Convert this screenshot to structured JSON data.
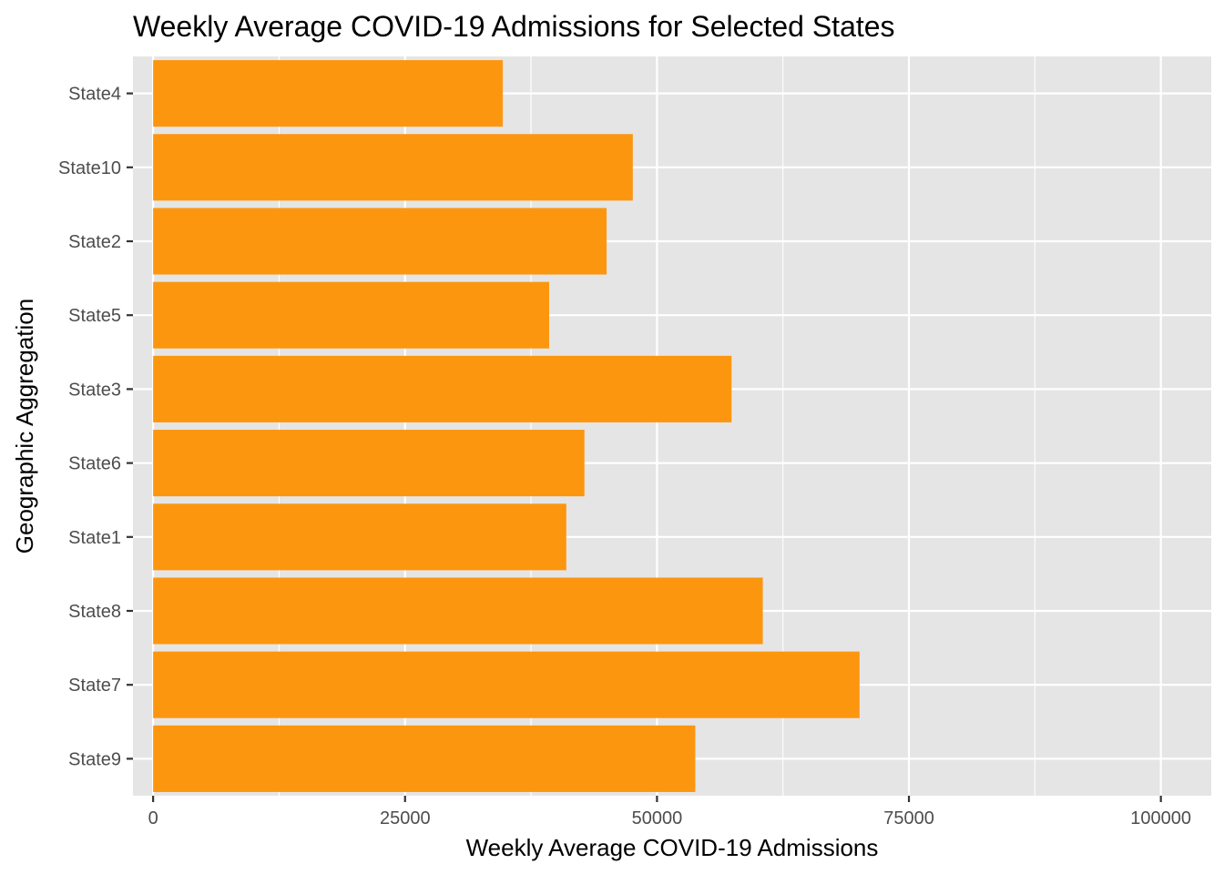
{
  "chart_data": {
    "type": "bar",
    "orientation": "horizontal",
    "title": "Weekly Average COVID-19 Admissions for Selected States",
    "xlabel": "Weekly Average COVID-19 Admissions",
    "ylabel": "Geographic Aggregation",
    "categories": [
      "State4",
      "State10",
      "State2",
      "State5",
      "State3",
      "State6",
      "State1",
      "State8",
      "State7",
      "State9"
    ],
    "values": [
      34700,
      47600,
      45000,
      39300,
      57400,
      42800,
      41000,
      60500,
      70100,
      53800
    ],
    "xlim": [
      -2000,
      105000
    ],
    "x_ticks": [
      0,
      25000,
      50000,
      75000,
      100000
    ],
    "x_tick_labels": [
      "0",
      "25000",
      "50000",
      "75000",
      "100000"
    ],
    "grid": true,
    "bar_color": "#FC960F",
    "panel_background": "#E5E5E5",
    "grid_color": "#FFFFFF"
  }
}
